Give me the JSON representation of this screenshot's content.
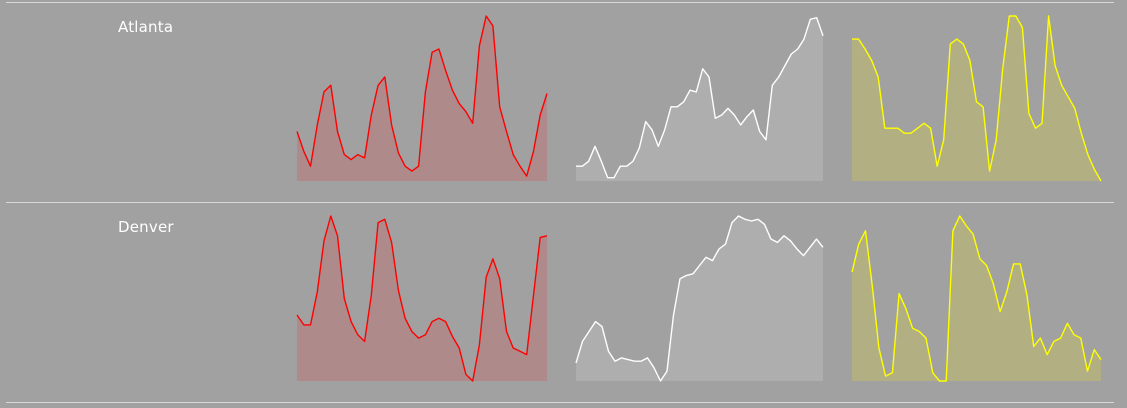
{
  "chart_data": {
    "type": "area",
    "panels": [
      {
        "city": "Atlanta",
        "series": [
          {
            "color": "#ff0000",
            "fill": "#ae8a8a",
            "values": [
              0.3,
              0.18,
              0.09,
              0.34,
              0.54,
              0.58,
              0.3,
              0.16,
              0.13,
              0.16,
              0.14,
              0.4,
              0.58,
              0.63,
              0.34,
              0.17,
              0.09,
              0.06,
              0.09,
              0.54,
              0.78,
              0.8,
              0.67,
              0.55,
              0.47,
              0.42,
              0.35,
              0.82,
              1.0,
              0.94,
              0.45,
              0.3,
              0.16,
              0.09,
              0.03,
              0.18,
              0.4,
              0.53
            ]
          },
          {
            "color": "#ffffff",
            "fill": "#aeaeae",
            "values": [
              0.09,
              0.09,
              0.12,
              0.21,
              0.12,
              0.02,
              0.02,
              0.09,
              0.09,
              0.12,
              0.2,
              0.36,
              0.31,
              0.21,
              0.31,
              0.45,
              0.45,
              0.48,
              0.55,
              0.54,
              0.68,
              0.63,
              0.38,
              0.4,
              0.44,
              0.4,
              0.34,
              0.39,
              0.43,
              0.3,
              0.25,
              0.58,
              0.63,
              0.7,
              0.77,
              0.8,
              0.86,
              0.98,
              0.99,
              0.88
            ]
          },
          {
            "color": "#ffff00",
            "fill": "#b2b082",
            "values": [
              0.86,
              0.86,
              0.8,
              0.73,
              0.63,
              0.32,
              0.32,
              0.32,
              0.29,
              0.29,
              0.32,
              0.35,
              0.32,
              0.09,
              0.25,
              0.83,
              0.86,
              0.83,
              0.73,
              0.48,
              0.45,
              0.06,
              0.25,
              0.68,
              1.0,
              1.0,
              0.93,
              0.41,
              0.32,
              0.35,
              1.0,
              0.7,
              0.58,
              0.51,
              0.44,
              0.29,
              0.16,
              0.07,
              0.0
            ]
          }
        ]
      },
      {
        "city": "Denver",
        "series": [
          {
            "color": "#ff0000",
            "fill": "#ae8a8a",
            "values": [
              0.4,
              0.34,
              0.34,
              0.54,
              0.85,
              1.0,
              0.88,
              0.5,
              0.36,
              0.28,
              0.24,
              0.52,
              0.96,
              0.98,
              0.84,
              0.55,
              0.38,
              0.3,
              0.26,
              0.28,
              0.36,
              0.38,
              0.36,
              0.27,
              0.2,
              0.04,
              0.0,
              0.22,
              0.63,
              0.74,
              0.62,
              0.3,
              0.2,
              0.18,
              0.16,
              0.52,
              0.87,
              0.88
            ]
          },
          {
            "color": "#ffffff",
            "fill": "#aeaeae",
            "values": [
              0.11,
              0.24,
              0.3,
              0.36,
              0.33,
              0.18,
              0.12,
              0.14,
              0.13,
              0.12,
              0.12,
              0.14,
              0.08,
              0.0,
              0.06,
              0.4,
              0.62,
              0.64,
              0.65,
              0.7,
              0.75,
              0.73,
              0.8,
              0.83,
              0.96,
              1.0,
              0.98,
              0.97,
              0.98,
              0.95,
              0.86,
              0.84,
              0.88,
              0.85,
              0.8,
              0.76,
              0.81,
              0.86,
              0.81
            ]
          },
          {
            "color": "#ffff00",
            "fill": "#b2b082",
            "values": [
              0.66,
              0.83,
              0.91,
              0.58,
              0.2,
              0.03,
              0.05,
              0.53,
              0.44,
              0.32,
              0.3,
              0.26,
              0.05,
              0.0,
              0.0,
              0.91,
              1.0,
              0.94,
              0.89,
              0.74,
              0.7,
              0.59,
              0.42,
              0.54,
              0.71,
              0.71,
              0.52,
              0.21,
              0.26,
              0.16,
              0.24,
              0.26,
              0.35,
              0.28,
              0.26,
              0.06,
              0.19,
              0.13
            ]
          }
        ]
      }
    ]
  }
}
